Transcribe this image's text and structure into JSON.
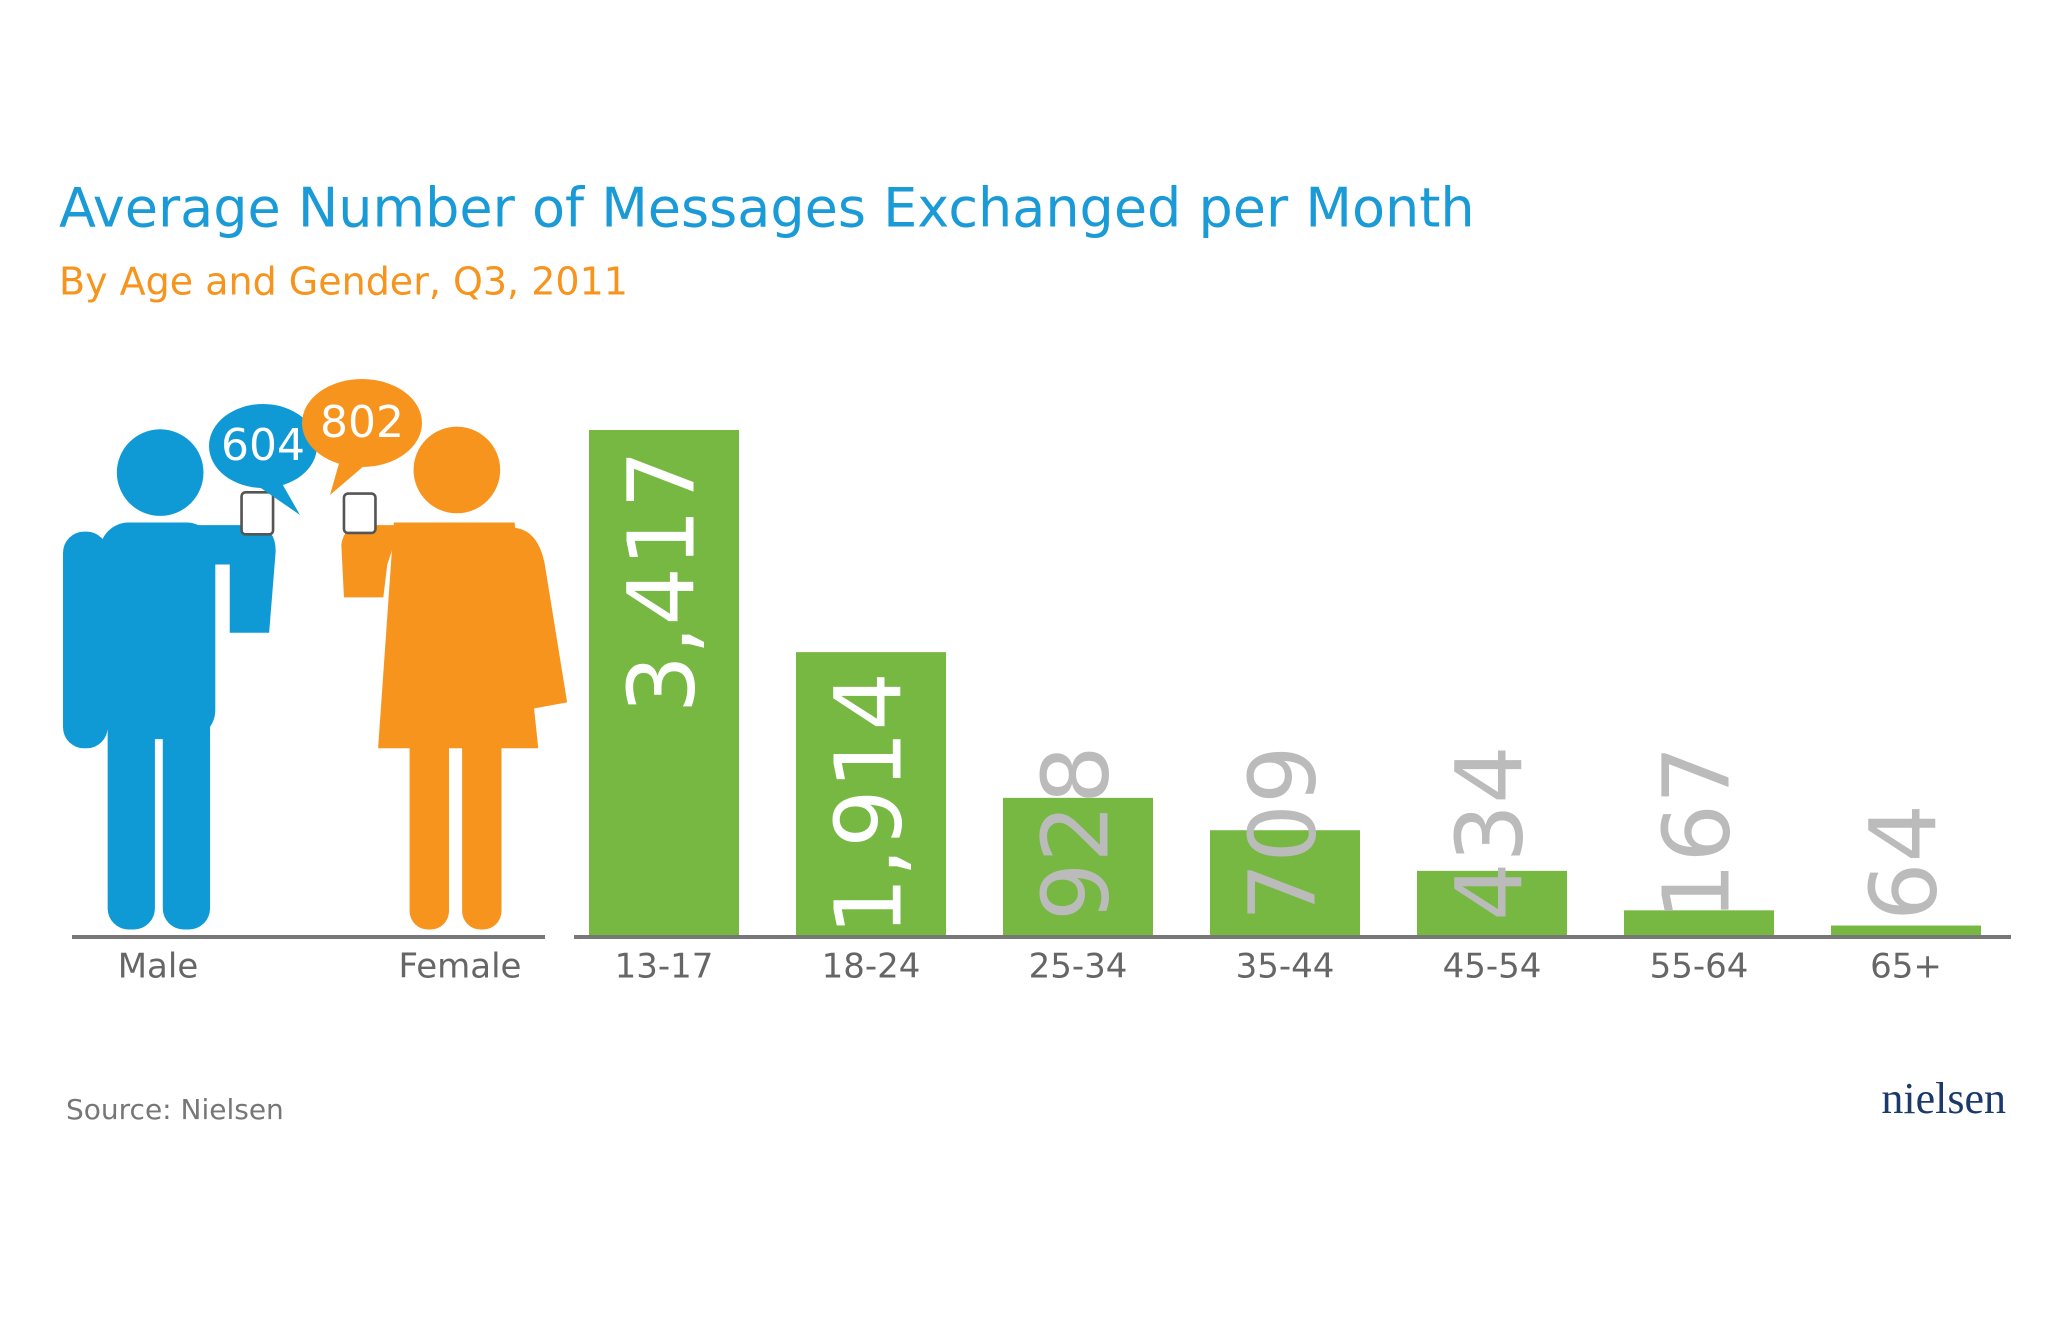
{
  "chart_data": {
    "type": "bar",
    "title": "Average Number of Messages Exchanged per Month",
    "subtitle": "By Age and Gender, Q3, 2011",
    "categories": [
      "13-17",
      "18-24",
      "25-34",
      "35-44",
      "45-54",
      "55-64",
      "65+"
    ],
    "values": [
      3417,
      1914,
      928,
      709,
      434,
      167,
      64
    ],
    "value_labels": [
      "3,417",
      "1,914",
      "928",
      "709",
      "434",
      "167",
      "64"
    ],
    "color": "#77b843",
    "gender": {
      "categories": [
        "Male",
        "Female"
      ],
      "values": [
        604,
        802
      ],
      "colors": [
        "#0f9ad6",
        "#f7941d"
      ]
    }
  },
  "source": "Source: Nielsen",
  "logo": "nielsen"
}
